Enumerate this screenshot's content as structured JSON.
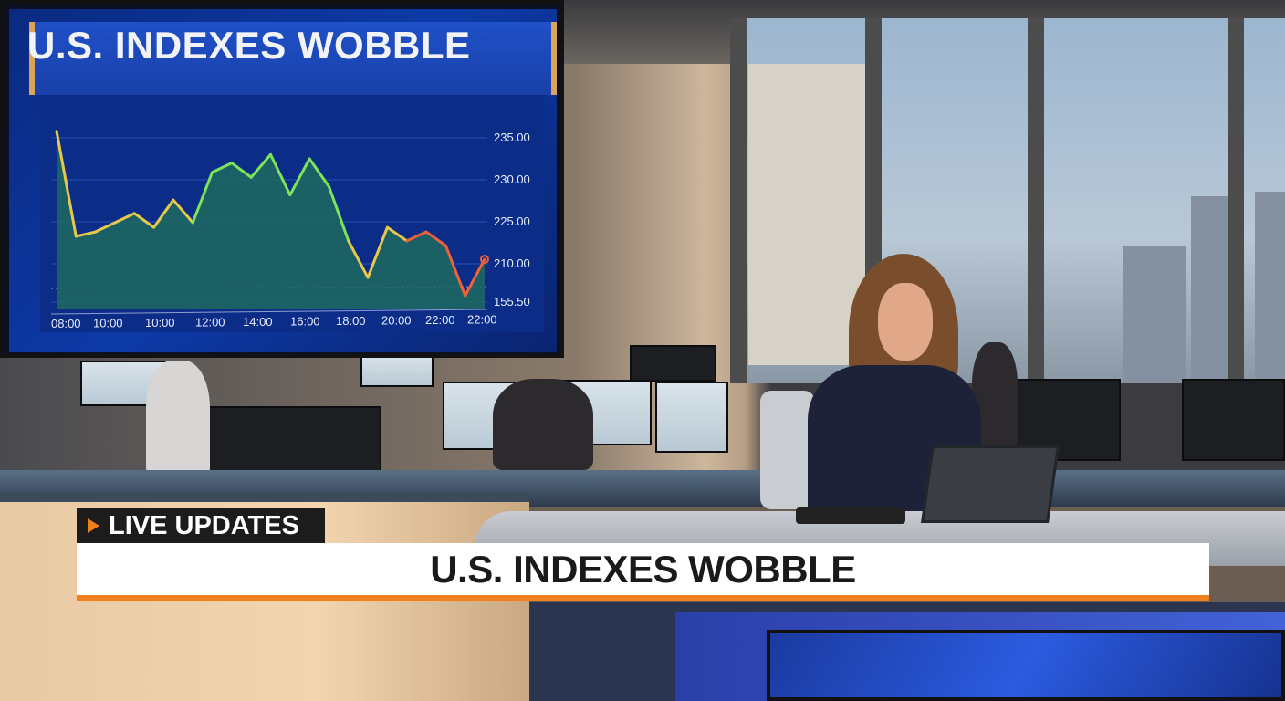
{
  "monitor": {
    "title": "U.S. INDEXES WOBBLE",
    "chart": {
      "type": "area",
      "x_tick_labels": [
        "08:00",
        "10:00",
        "10:00",
        "12:00",
        "14:00",
        "16:00",
        "18:00",
        "20:00",
        "22:00",
        "22:00"
      ],
      "y_tick_labels": [
        "235.00",
        "230.00",
        "225.00",
        "210.00",
        "155.50"
      ],
      "y_tick_values": [
        235,
        230,
        225,
        210,
        155.5
      ],
      "values": [
        235.8,
        219.8,
        221.4,
        224.7,
        226.0,
        223.0,
        227.6,
        224.7,
        230.9,
        232.0,
        230.3,
        233.0,
        228.2,
        232.5,
        229.2,
        218.2,
        190.5,
        223.0,
        218.2,
        221.4,
        216.5,
        164.6,
        211.6
      ],
      "colors": {
        "high": "#7de35a",
        "mid": "#e8c84a",
        "low": "#f0603a",
        "fill": "#1d6a5e"
      }
    }
  },
  "lower_third": {
    "badge_label": "LIVE UPDATES",
    "badge_icon": "play-triangle-icon",
    "headline": "U.S. INDEXES WOBBLE",
    "accent_color": "#f07f1e"
  }
}
